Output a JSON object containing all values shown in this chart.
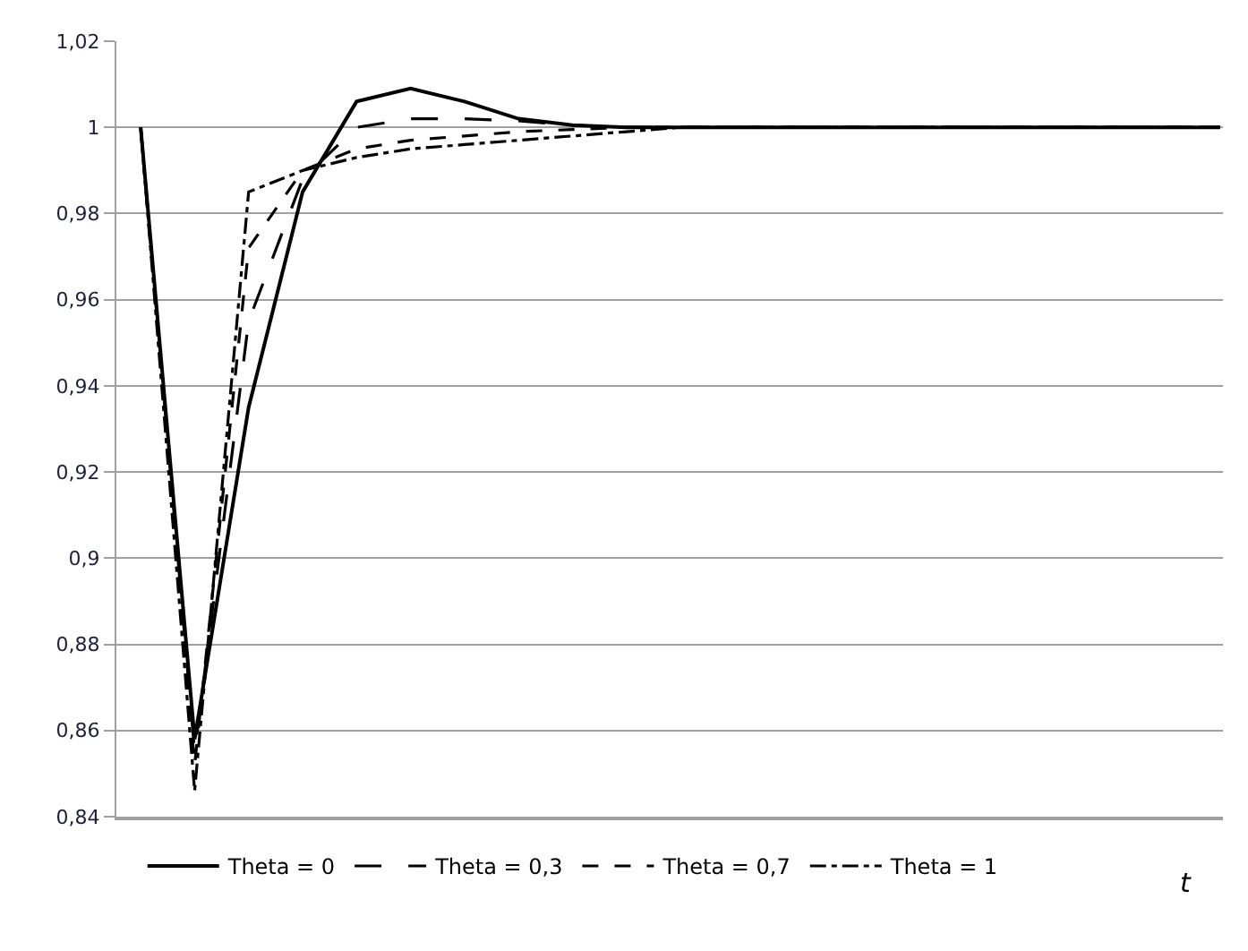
{
  "chart_data": {
    "type": "line",
    "xlabel": "t",
    "categories": [
      null,
      null,
      null,
      null,
      null,
      null,
      null,
      null,
      null,
      null,
      null,
      null,
      null,
      null,
      null,
      null,
      null,
      null,
      null,
      null,
      null
    ],
    "series": [
      {
        "name": "Theta = 0",
        "color": "#000000",
        "line_style": "solid",
        "values": [
          1.0,
          0.858,
          0.935,
          0.985,
          1.006,
          1.009,
          1.006,
          1.002,
          1.0005,
          1.0,
          1.0,
          1.0,
          1.0,
          1.0,
          1.0,
          1.0,
          1.0,
          1.0,
          1.0,
          1.0,
          1.0
        ]
      },
      {
        "name": "Theta = 0,3",
        "color": "#000000",
        "line_style": "longdash",
        "values": [
          1.0,
          0.855,
          0.955,
          0.988,
          1.0,
          1.002,
          1.002,
          1.0015,
          1.0005,
          1.0,
          1.0,
          1.0,
          1.0,
          1.0,
          1.0,
          1.0,
          1.0,
          1.0,
          1.0,
          1.0,
          1.0
        ]
      },
      {
        "name": "Theta = 0,7",
        "color": "#000000",
        "line_style": "dashed",
        "values": [
          1.0,
          0.852,
          0.972,
          0.99,
          0.995,
          0.997,
          0.998,
          0.999,
          0.9995,
          1.0,
          1.0,
          1.0,
          1.0,
          1.0,
          1.0,
          1.0,
          1.0,
          1.0,
          1.0,
          1.0,
          1.0
        ]
      },
      {
        "name": "Theta = 1",
        "color": "#000000",
        "line_style": "dashdot",
        "values": [
          1.0,
          0.846,
          0.985,
          0.99,
          0.993,
          0.995,
          0.996,
          0.997,
          0.998,
          0.999,
          1.0,
          1.0,
          1.0,
          1.0,
          1.0,
          1.0,
          1.0,
          1.0,
          1.0,
          1.0,
          1.0
        ]
      }
    ],
    "ylim": [
      0.84,
      1.02
    ],
    "yticks": [
      {
        "value": 0.84,
        "label": "0,84"
      },
      {
        "value": 0.86,
        "label": "0,86"
      },
      {
        "value": 0.88,
        "label": "0,88"
      },
      {
        "value": 0.9,
        "label": "0,9"
      },
      {
        "value": 0.92,
        "label": "0,92"
      },
      {
        "value": 0.94,
        "label": "0,94"
      },
      {
        "value": 0.96,
        "label": "0,96"
      },
      {
        "value": 0.98,
        "label": "0,98"
      },
      {
        "value": 1,
        "label": "1"
      },
      {
        "value": 1.02,
        "label": "1,02"
      }
    ],
    "grid": "y",
    "legend": "bottom",
    "marker": "none"
  }
}
